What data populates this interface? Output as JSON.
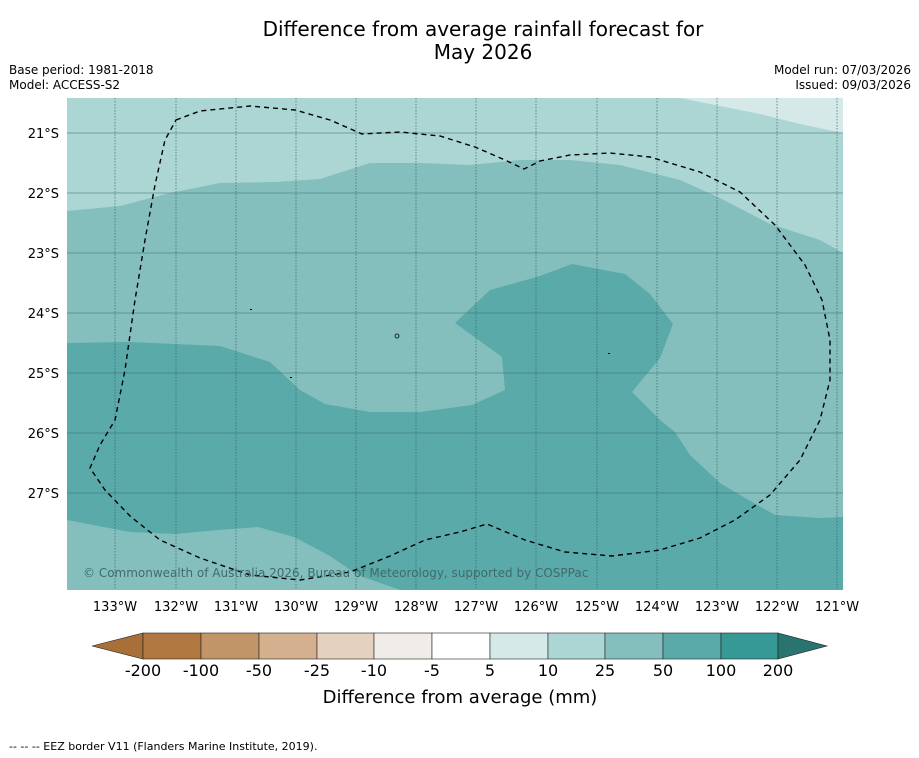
{
  "title": {
    "line1": "Difference from average rainfall forecast for",
    "line2": "May 2026"
  },
  "meta": {
    "base_period": "Base period: 1981-2018",
    "model": "Model: ACCESS-S2",
    "model_run": "Model run: 07/03/2026",
    "issued": "Issued: 09/03/2026"
  },
  "map": {
    "lat_labels": [
      "21°S",
      "22°S",
      "23°S",
      "24°S",
      "25°S",
      "26°S",
      "27°S"
    ],
    "lon_labels": [
      "133°W",
      "132°W",
      "131°W",
      "130°W",
      "129°W",
      "128°W",
      "127°W",
      "126°W",
      "125°W",
      "124°W",
      "123°W",
      "122°W",
      "121°W"
    ],
    "copyright": "© Commonwealth of Australia 2026, Bureau of Meteorology, supported by COSPPac",
    "fill_colors": {
      "5_10": "#d4e9e8",
      "10_25": "#acd6d4",
      "25_50": "#84bfbe",
      "50_100": "#5aaaa9"
    }
  },
  "colorbar": {
    "label": "Difference from average (mm)",
    "ticks": [
      "-200",
      "-100",
      "-50",
      "-25",
      "-10",
      "-5",
      "5",
      "10",
      "25",
      "50",
      "100",
      "200"
    ],
    "colors": [
      "#a86f38",
      "#b07840",
      "#c29569",
      "#d4b08f",
      "#e4d2be",
      "#f0ece7",
      "#ffffff",
      "#d4e9e8",
      "#acd6d4",
      "#84bfbe",
      "#5aaaa9",
      "#369996",
      "#2a7470"
    ]
  },
  "footer": {
    "legend_text": "--  --  -- EEZ border V11 (Flanders Marine Institute, 2019)."
  }
}
